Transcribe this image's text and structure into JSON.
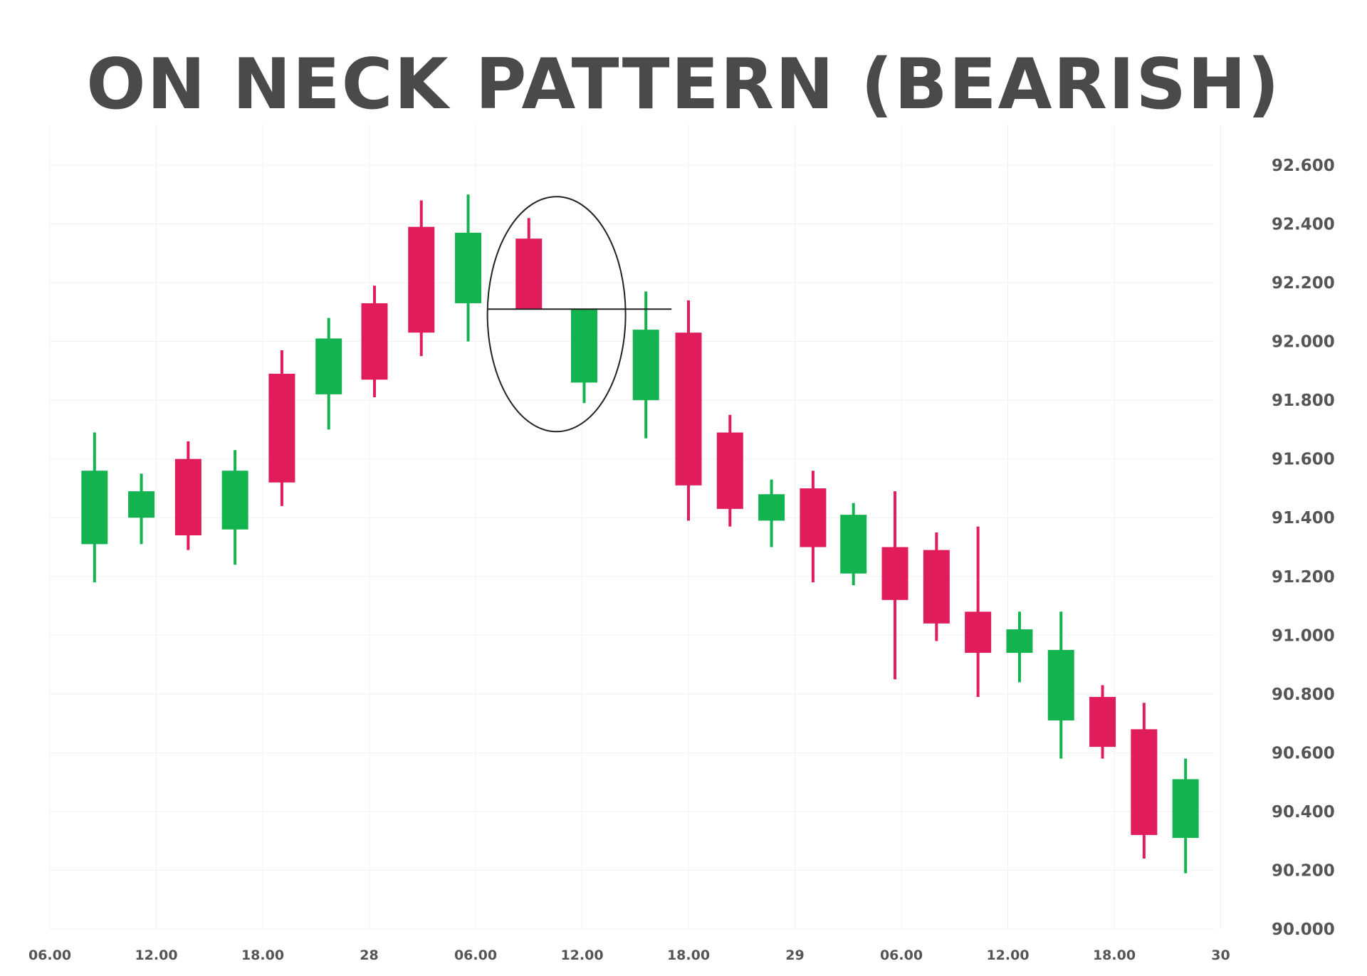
{
  "colors": {
    "bull": "#13b44f",
    "bear": "#e01c5b",
    "title": "#4a4a4a",
    "ticks": "#555555",
    "grid": "#f1f1f1",
    "annotation": "#222222"
  },
  "chart_data": {
    "type": "candlestick",
    "title": "ON NECK PATTERN (BEARISH)",
    "xlabel": "",
    "ylabel": "",
    "ylim": [
      90.0,
      92.6
    ],
    "y_ticks": [
      "92.600",
      "92.400",
      "92.200",
      "92.000",
      "91.800",
      "91.600",
      "91.400",
      "91.200",
      "91.000",
      "90.800",
      "90.600",
      "90.400",
      "90.200",
      "90.000"
    ],
    "y_tick_values": [
      92.6,
      92.4,
      92.2,
      92.0,
      91.8,
      91.6,
      91.4,
      91.2,
      91.0,
      90.8,
      90.6,
      90.4,
      90.2,
      90.0
    ],
    "x_ticks": [
      "06.00",
      "12.00",
      "18.00",
      "28",
      "06.00",
      "12.00",
      "18.00",
      "29",
      "06.00",
      "12.00",
      "18.00",
      "30"
    ],
    "x_tick_positions": [
      0,
      1,
      2,
      3,
      4,
      5,
      6,
      7,
      8,
      9,
      10,
      11
    ],
    "grid": true,
    "candles": [
      {
        "x": 0.42,
        "open": 91.31,
        "high": 91.69,
        "low": 91.18,
        "close": 91.56
      },
      {
        "x": 0.86,
        "open": 91.4,
        "high": 91.55,
        "low": 91.31,
        "close": 91.49
      },
      {
        "x": 1.3,
        "open": 91.6,
        "high": 91.66,
        "low": 91.29,
        "close": 91.34
      },
      {
        "x": 1.74,
        "open": 91.36,
        "high": 91.63,
        "low": 91.24,
        "close": 91.56
      },
      {
        "x": 2.18,
        "open": 91.89,
        "high": 91.97,
        "low": 91.44,
        "close": 91.52
      },
      {
        "x": 2.62,
        "open": 91.82,
        "high": 92.08,
        "low": 91.7,
        "close": 92.01
      },
      {
        "x": 3.05,
        "open": 92.13,
        "high": 92.19,
        "low": 91.81,
        "close": 91.87
      },
      {
        "x": 3.49,
        "open": 92.39,
        "high": 92.48,
        "low": 91.95,
        "close": 92.03
      },
      {
        "x": 3.93,
        "open": 92.13,
        "high": 92.5,
        "low": 92.0,
        "close": 92.37
      },
      {
        "x": 4.5,
        "open": 92.35,
        "high": 92.42,
        "low": 92.11,
        "close": 92.11
      },
      {
        "x": 5.02,
        "open": 91.86,
        "high": 92.11,
        "low": 91.79,
        "close": 92.11
      },
      {
        "x": 5.6,
        "open": 91.8,
        "high": 92.17,
        "low": 91.67,
        "close": 92.04
      },
      {
        "x": 6.0,
        "open": 92.03,
        "high": 92.14,
        "low": 91.39,
        "close": 91.51
      },
      {
        "x": 6.39,
        "open": 91.69,
        "high": 91.75,
        "low": 91.37,
        "close": 91.43
      },
      {
        "x": 6.78,
        "open": 91.39,
        "high": 91.53,
        "low": 91.3,
        "close": 91.48
      },
      {
        "x": 7.17,
        "open": 91.5,
        "high": 91.56,
        "low": 91.18,
        "close": 91.3
      },
      {
        "x": 7.55,
        "open": 91.21,
        "high": 91.45,
        "low": 91.17,
        "close": 91.41
      },
      {
        "x": 7.94,
        "open": 91.3,
        "high": 91.49,
        "low": 90.85,
        "close": 91.12
      },
      {
        "x": 8.33,
        "open": 91.29,
        "high": 91.35,
        "low": 90.98,
        "close": 91.04
      },
      {
        "x": 8.72,
        "open": 91.08,
        "high": 91.37,
        "low": 90.79,
        "close": 90.94
      },
      {
        "x": 9.11,
        "open": 90.94,
        "high": 91.08,
        "low": 90.84,
        "close": 91.02
      },
      {
        "x": 9.5,
        "open": 90.71,
        "high": 91.08,
        "low": 90.58,
        "close": 90.95
      },
      {
        "x": 9.89,
        "open": 90.79,
        "high": 90.83,
        "low": 90.58,
        "close": 90.62
      },
      {
        "x": 10.28,
        "open": 90.68,
        "high": 90.77,
        "low": 90.24,
        "close": 90.32
      },
      {
        "x": 10.67,
        "open": 90.31,
        "high": 90.58,
        "low": 90.19,
        "close": 90.51
      }
    ],
    "annotations": {
      "highlight_candles": [
        9,
        10
      ],
      "neck_line_value": 92.11
    }
  }
}
